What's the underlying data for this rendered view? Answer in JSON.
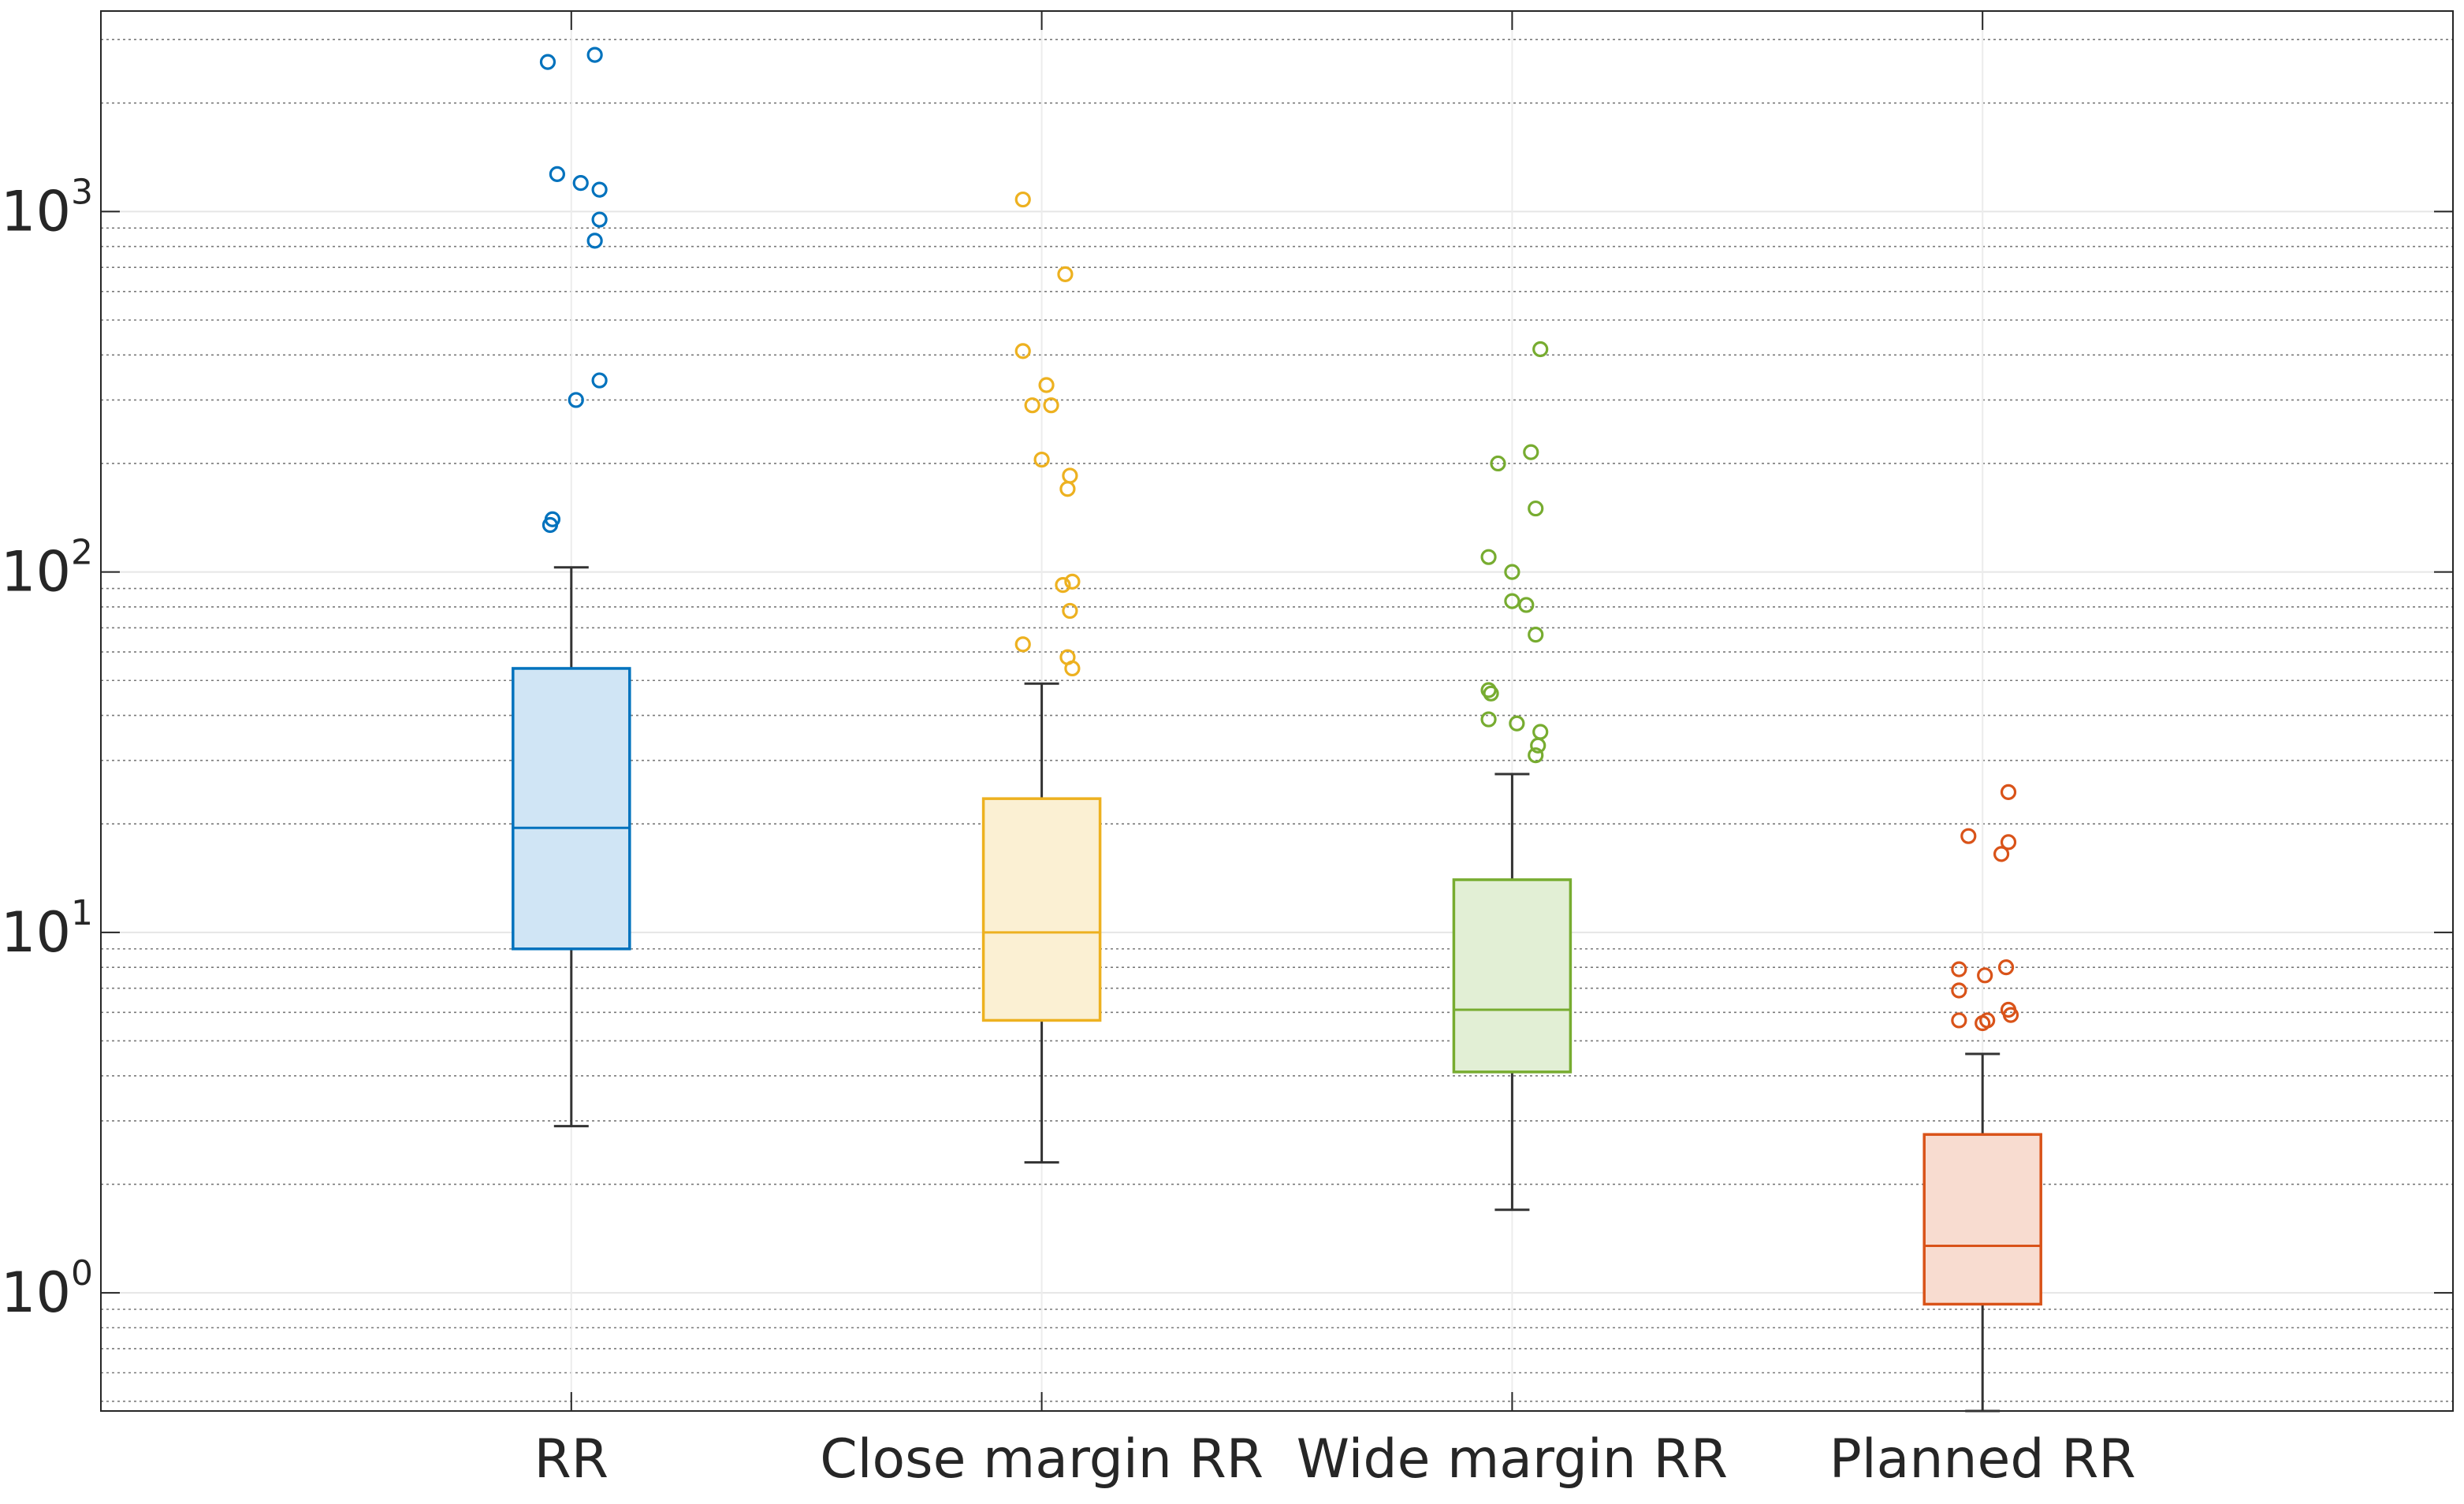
{
  "chart_data": {
    "type": "box",
    "title": "",
    "xlabel": "",
    "ylabel": "",
    "yscale": "log",
    "ylim": [
      0.47,
      3600
    ],
    "yticks": [
      {
        "value": 1,
        "base": "10",
        "exp": "0"
      },
      {
        "value": 10,
        "base": "10",
        "exp": "1"
      },
      {
        "value": 100,
        "base": "10",
        "exp": "2"
      },
      {
        "value": 1000,
        "base": "10",
        "exp": "3"
      }
    ],
    "grid": {
      "major": true,
      "minor": true
    },
    "categories": [
      "RR",
      "Close margin RR",
      "Wide margin RR",
      "Planned RR"
    ],
    "series": [
      {
        "category": "RR",
        "color": "#0072BD",
        "fill": "#D0E5F5",
        "whisker_low": 2.9,
        "q1": 9.0,
        "median": 19.5,
        "q3": 54,
        "whisker_high": 103,
        "outliers": [
          {
            "dx": -0.05,
            "y": 2600
          },
          {
            "dx": 0.05,
            "y": 2720
          },
          {
            "dx": -0.03,
            "y": 1270
          },
          {
            "dx": 0.02,
            "y": 1200
          },
          {
            "dx": 0.06,
            "y": 1150
          },
          {
            "dx": 0.06,
            "y": 950
          },
          {
            "dx": 0.05,
            "y": 830
          },
          {
            "dx": 0.06,
            "y": 340
          },
          {
            "dx": 0.01,
            "y": 300
          },
          {
            "dx": -0.04,
            "y": 140
          },
          {
            "dx": -0.045,
            "y": 135
          }
        ]
      },
      {
        "category": "Close margin RR",
        "color": "#EDB120",
        "fill": "#FBF0D3",
        "whisker_low": 2.3,
        "q1": 5.7,
        "median": 10,
        "q3": 23.5,
        "whisker_high": 49,
        "outliers": [
          {
            "dx": -0.04,
            "y": 1080
          },
          {
            "dx": 0.05,
            "y": 670
          },
          {
            "dx": -0.04,
            "y": 410
          },
          {
            "dx": 0.01,
            "y": 330
          },
          {
            "dx": -0.02,
            "y": 290
          },
          {
            "dx": 0.02,
            "y": 290
          },
          {
            "dx": 0.0,
            "y": 205
          },
          {
            "dx": 0.06,
            "y": 185
          },
          {
            "dx": 0.055,
            "y": 170
          },
          {
            "dx": 0.065,
            "y": 94
          },
          {
            "dx": 0.045,
            "y": 92
          },
          {
            "dx": 0.06,
            "y": 78
          },
          {
            "dx": -0.04,
            "y": 63
          },
          {
            "dx": 0.055,
            "y": 58
          },
          {
            "dx": 0.065,
            "y": 54
          }
        ]
      },
      {
        "category": "Wide margin RR",
        "color": "#77AC30",
        "fill": "#E2EFD5",
        "whisker_low": 1.7,
        "q1": 4.1,
        "median": 6.1,
        "q3": 14,
        "whisker_high": 27.5,
        "outliers": [
          {
            "dx": 0.06,
            "y": 415
          },
          {
            "dx": 0.04,
            "y": 215
          },
          {
            "dx": -0.03,
            "y": 200
          },
          {
            "dx": 0.05,
            "y": 150
          },
          {
            "dx": -0.05,
            "y": 110
          },
          {
            "dx": 0.0,
            "y": 100
          },
          {
            "dx": 0.0,
            "y": 83
          },
          {
            "dx": 0.03,
            "y": 81
          },
          {
            "dx": 0.05,
            "y": 67
          },
          {
            "dx": -0.05,
            "y": 47
          },
          {
            "dx": -0.045,
            "y": 46
          },
          {
            "dx": -0.05,
            "y": 39
          },
          {
            "dx": 0.01,
            "y": 38
          },
          {
            "dx": 0.06,
            "y": 36
          },
          {
            "dx": 0.055,
            "y": 33
          },
          {
            "dx": 0.05,
            "y": 31
          }
        ]
      },
      {
        "category": "Planned RR",
        "color": "#D95319",
        "fill": "#F8DCD0",
        "whisker_low": 0.47,
        "q1": 0.93,
        "median": 1.35,
        "q3": 2.75,
        "whisker_high": 4.6,
        "outliers": [
          {
            "dx": 0.055,
            "y": 24.5
          },
          {
            "dx": -0.03,
            "y": 18.5
          },
          {
            "dx": 0.055,
            "y": 17.8
          },
          {
            "dx": 0.04,
            "y": 16.5
          },
          {
            "dx": -0.05,
            "y": 7.9
          },
          {
            "dx": 0.05,
            "y": 8.0
          },
          {
            "dx": 0.005,
            "y": 7.6
          },
          {
            "dx": -0.05,
            "y": 6.9
          },
          {
            "dx": 0.055,
            "y": 6.1
          },
          {
            "dx": 0.06,
            "y": 5.9
          },
          {
            "dx": -0.05,
            "y": 5.7
          },
          {
            "dx": 0.01,
            "y": 5.7
          },
          {
            "dx": 0.0,
            "y": 5.6
          }
        ]
      }
    ]
  }
}
